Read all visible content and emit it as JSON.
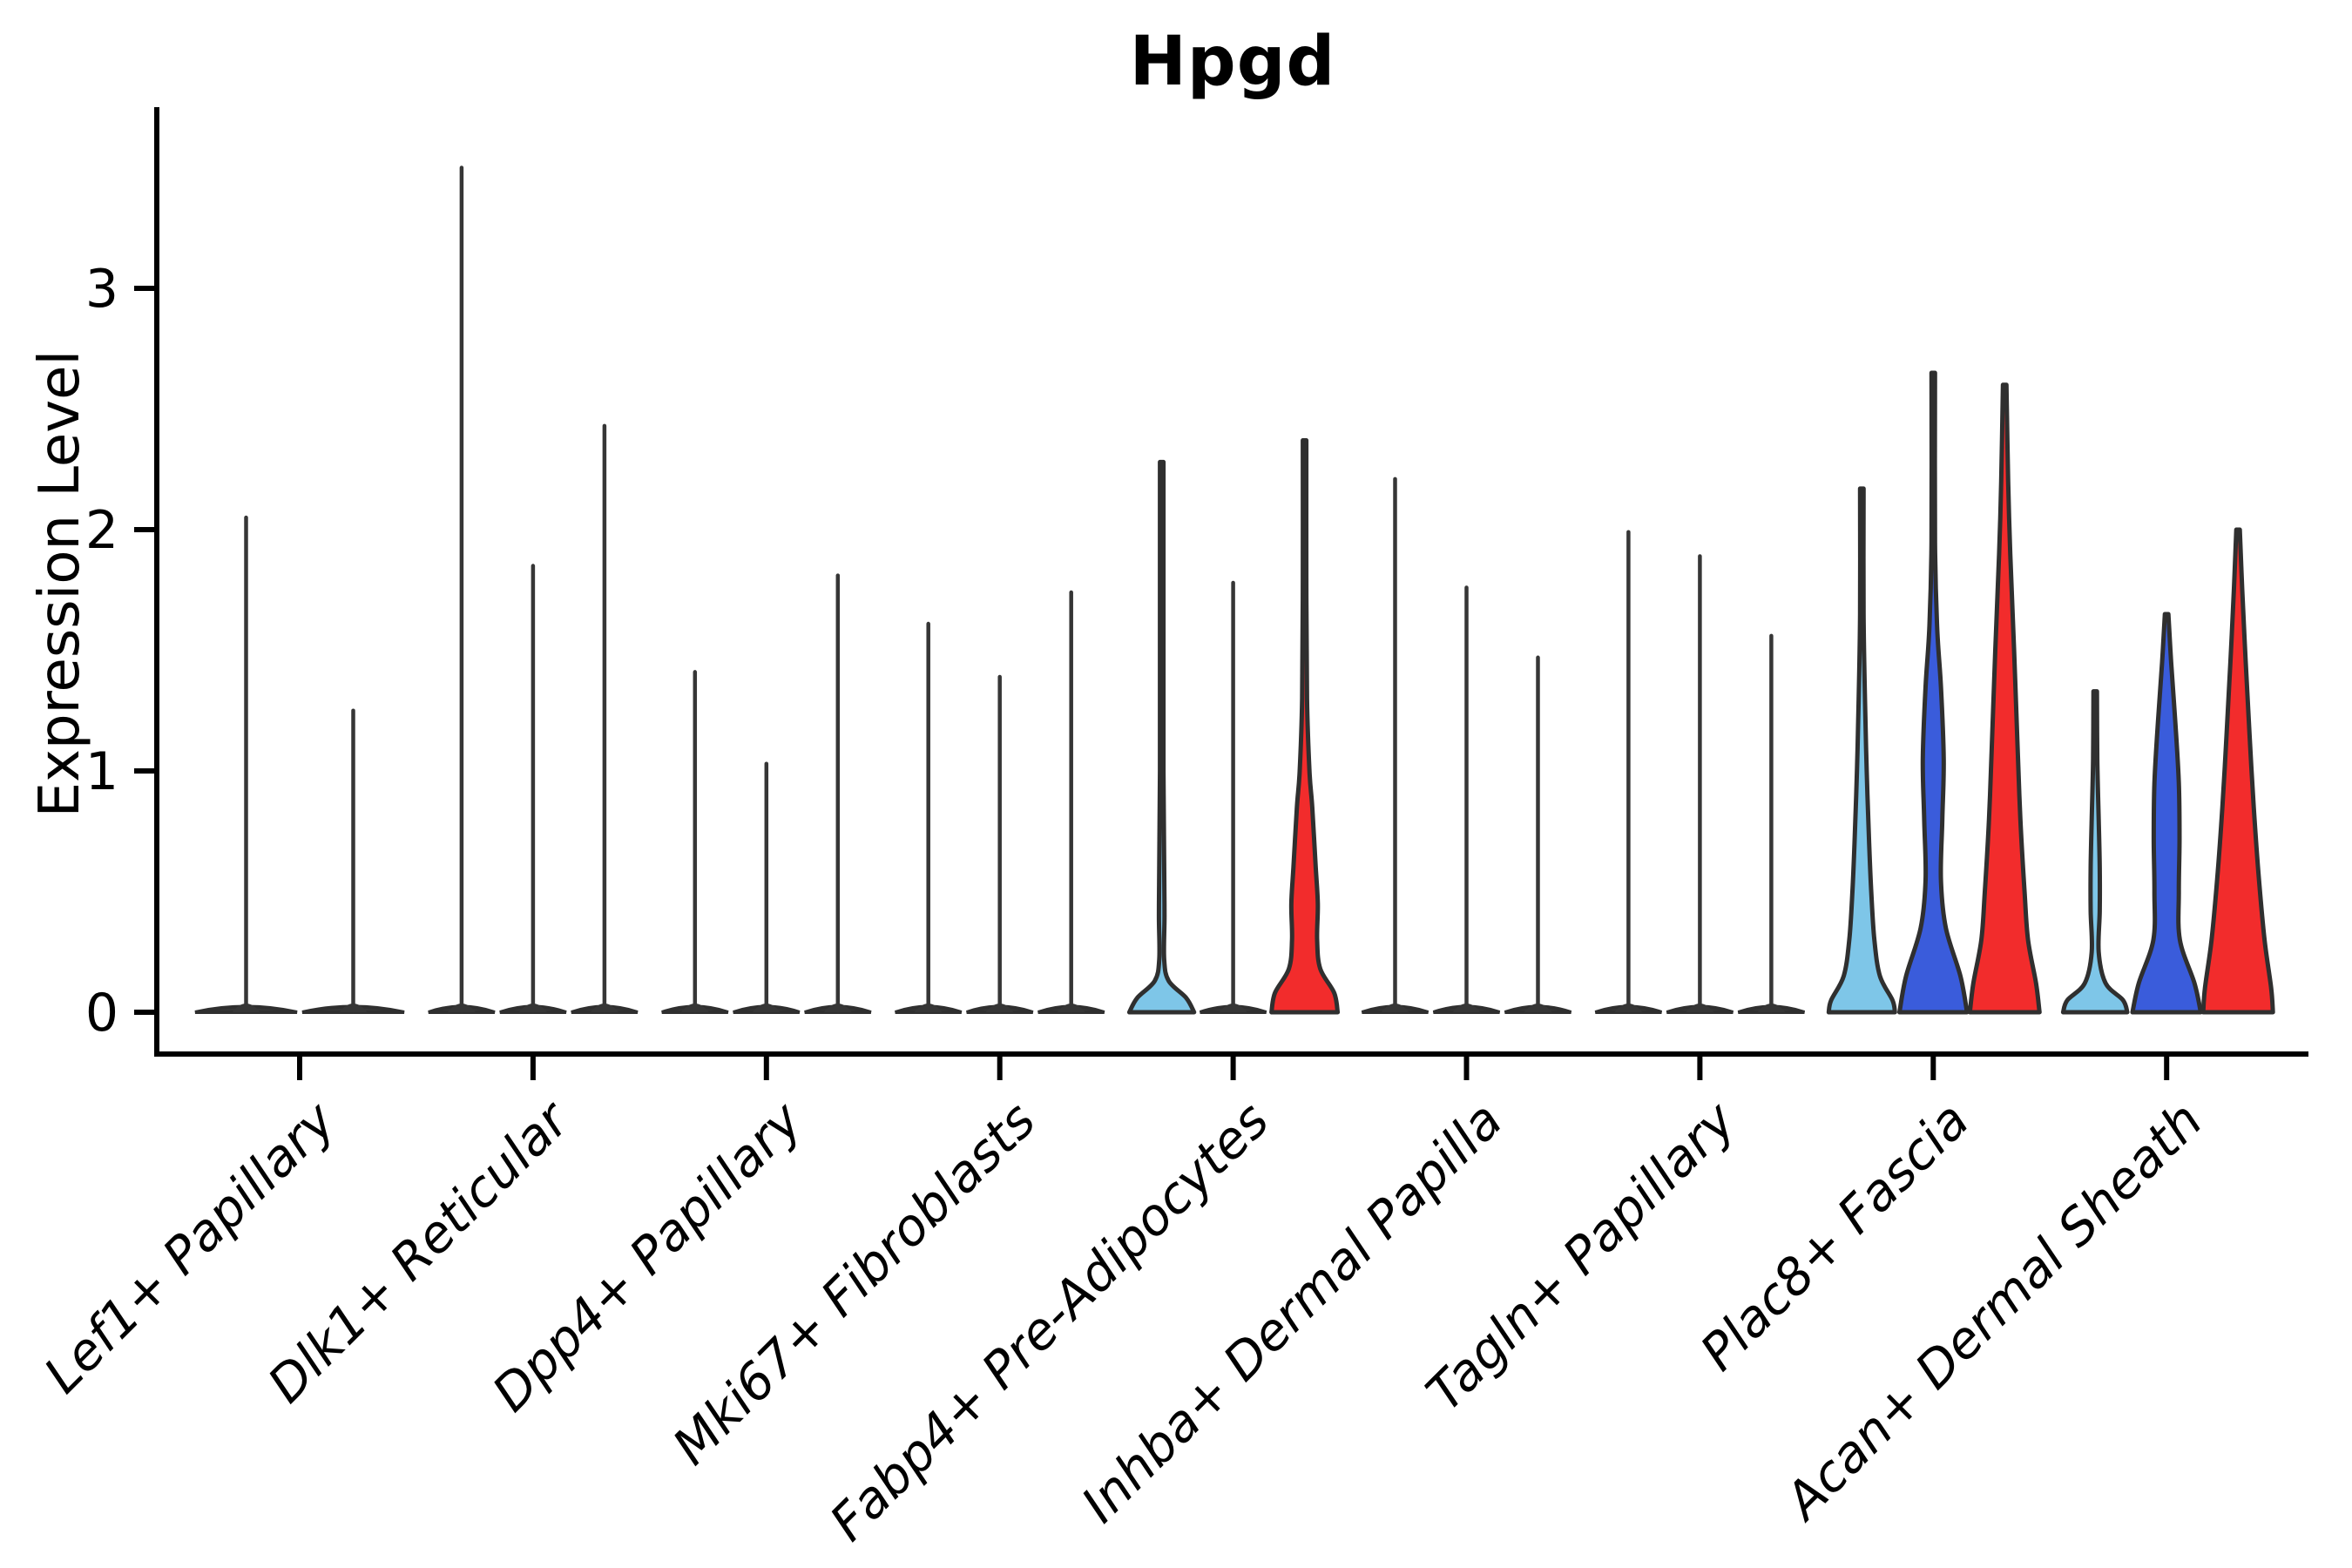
{
  "chart_data": {
    "type": "violin",
    "title": "Hpgd",
    "ylabel": "Expression Level",
    "xlabel": "",
    "ylim": [
      0,
      3.75
    ],
    "yticks": [
      "0",
      "1",
      "2",
      "3"
    ],
    "grid": false,
    "legend": "none",
    "categories": [
      "Lef1+ Papillary",
      "Dlk1+ Reticular",
      "Dpp4+ Papillary",
      "Mki67+ Fibroblasts",
      "Fabp4+ Pre-Adipocytes",
      "Inhba+ Dermal Papilla",
      "Tagln+ Papillary",
      "Plac8+ Fascia",
      "Acan+ Dermal Sheath"
    ],
    "colors": {
      "light_blue": "#7EC6E8",
      "dark_blue": "#3A5CDB",
      "red": "#F22C2C",
      "thin_violin": "#363636",
      "edge": "#2F2F2F",
      "axis": "#000000"
    },
    "groups": [
      {
        "category": "Lef1+ Papillary",
        "violins": [
          {
            "style": "thin",
            "peak": 2.05
          },
          {
            "style": "thin",
            "peak": 1.25
          }
        ]
      },
      {
        "category": "Dlk1+ Reticular",
        "violins": [
          {
            "style": "thin",
            "peak": 3.5
          },
          {
            "style": "thin",
            "peak": 1.85
          },
          {
            "style": "thin",
            "peak": 2.43
          }
        ]
      },
      {
        "category": "Dpp4+ Papillary",
        "violins": [
          {
            "style": "thin",
            "peak": 1.41
          },
          {
            "style": "thin",
            "peak": 1.03
          },
          {
            "style": "thin",
            "peak": 1.81
          }
        ]
      },
      {
        "category": "Mki67+ Fibroblasts",
        "violins": [
          {
            "style": "thin",
            "peak": 1.61
          },
          {
            "style": "thin",
            "peak": 1.39
          },
          {
            "style": "thin",
            "peak": 1.74
          }
        ]
      },
      {
        "category": "Fabp4+ Pre-Adipocytes",
        "violins": [
          {
            "style": "light_blue",
            "peak": 2.28,
            "profile": [
              [
                2.28,
                0.04
              ],
              [
                1.6,
                0.04
              ],
              [
                1.0,
                0.05
              ],
              [
                0.62,
                0.07
              ],
              [
                0.4,
                0.08
              ],
              [
                0.22,
                0.07
              ],
              [
                0.13,
                0.2
              ],
              [
                0.06,
                0.7
              ],
              [
                0,
                0.93
              ]
            ]
          },
          {
            "style": "thin",
            "peak": 1.78
          },
          {
            "style": "red",
            "peak": 2.37,
            "profile": [
              [
                2.37,
                0.04
              ],
              [
                1.8,
                0.05
              ],
              [
                1.3,
                0.07
              ],
              [
                1.0,
                0.14
              ],
              [
                0.85,
                0.22
              ],
              [
                0.6,
                0.32
              ],
              [
                0.45,
                0.38
              ],
              [
                0.3,
                0.36
              ],
              [
                0.18,
                0.45
              ],
              [
                0.08,
                0.85
              ],
              [
                0,
                0.95
              ]
            ]
          }
        ]
      },
      {
        "category": "Inhba+ Dermal Papilla",
        "violins": [
          {
            "style": "thin",
            "peak": 2.21
          },
          {
            "style": "thin",
            "peak": 1.76
          },
          {
            "style": "thin",
            "peak": 1.47
          }
        ]
      },
      {
        "category": "Tagln+ Papillary",
        "violins": [
          {
            "style": "thin",
            "peak": 1.99
          },
          {
            "style": "thin",
            "peak": 1.89
          },
          {
            "style": "thin",
            "peak": 1.56
          }
        ]
      },
      {
        "category": "Plac8+ Fascia",
        "violins": [
          {
            "style": "light_blue",
            "peak": 2.17,
            "profile": [
              [
                2.17,
                0.04
              ],
              [
                1.65,
                0.05
              ],
              [
                1.3,
                0.09
              ],
              [
                1.0,
                0.14
              ],
              [
                0.7,
                0.21
              ],
              [
                0.5,
                0.27
              ],
              [
                0.3,
                0.36
              ],
              [
                0.15,
                0.52
              ],
              [
                0.05,
                0.88
              ],
              [
                0,
                0.95
              ]
            ]
          },
          {
            "style": "dark_blue",
            "peak": 2.65,
            "profile": [
              [
                2.65,
                0.04
              ],
              [
                1.95,
                0.05
              ],
              [
                1.6,
                0.11
              ],
              [
                1.35,
                0.22
              ],
              [
                1.05,
                0.3
              ],
              [
                0.8,
                0.26
              ],
              [
                0.55,
                0.22
              ],
              [
                0.35,
                0.36
              ],
              [
                0.15,
                0.78
              ],
              [
                0,
                0.97
              ]
            ]
          },
          {
            "style": "red",
            "peak": 2.6,
            "profile": [
              [
                2.6,
                0.05
              ],
              [
                2.2,
                0.1
              ],
              [
                1.9,
                0.16
              ],
              [
                1.5,
                0.27
              ],
              [
                1.1,
                0.37
              ],
              [
                0.8,
                0.45
              ],
              [
                0.5,
                0.57
              ],
              [
                0.3,
                0.67
              ],
              [
                0.12,
                0.9
              ],
              [
                0,
                1.0
              ]
            ]
          }
        ]
      },
      {
        "category": "Acan+ Dermal Sheath",
        "violins": [
          {
            "style": "light_blue",
            "peak": 1.33,
            "profile": [
              [
                1.33,
                0.04
              ],
              [
                1.05,
                0.06
              ],
              [
                0.8,
                0.1
              ],
              [
                0.6,
                0.13
              ],
              [
                0.42,
                0.13
              ],
              [
                0.25,
                0.1
              ],
              [
                0.12,
                0.3
              ],
              [
                0.05,
                0.8
              ],
              [
                0,
                0.92
              ]
            ]
          },
          {
            "style": "dark_blue",
            "peak": 1.65,
            "profile": [
              [
                1.65,
                0.05
              ],
              [
                1.45,
                0.13
              ],
              [
                1.2,
                0.25
              ],
              [
                0.95,
                0.35
              ],
              [
                0.72,
                0.37
              ],
              [
                0.5,
                0.35
              ],
              [
                0.3,
                0.38
              ],
              [
                0.12,
                0.8
              ],
              [
                0,
                0.98
              ]
            ]
          },
          {
            "style": "red",
            "peak": 2.0,
            "profile": [
              [
                2.0,
                0.05
              ],
              [
                1.75,
                0.12
              ],
              [
                1.45,
                0.22
              ],
              [
                1.15,
                0.33
              ],
              [
                0.85,
                0.45
              ],
              [
                0.55,
                0.6
              ],
              [
                0.3,
                0.76
              ],
              [
                0.1,
                0.95
              ],
              [
                0,
                1.0
              ]
            ]
          }
        ]
      }
    ]
  }
}
